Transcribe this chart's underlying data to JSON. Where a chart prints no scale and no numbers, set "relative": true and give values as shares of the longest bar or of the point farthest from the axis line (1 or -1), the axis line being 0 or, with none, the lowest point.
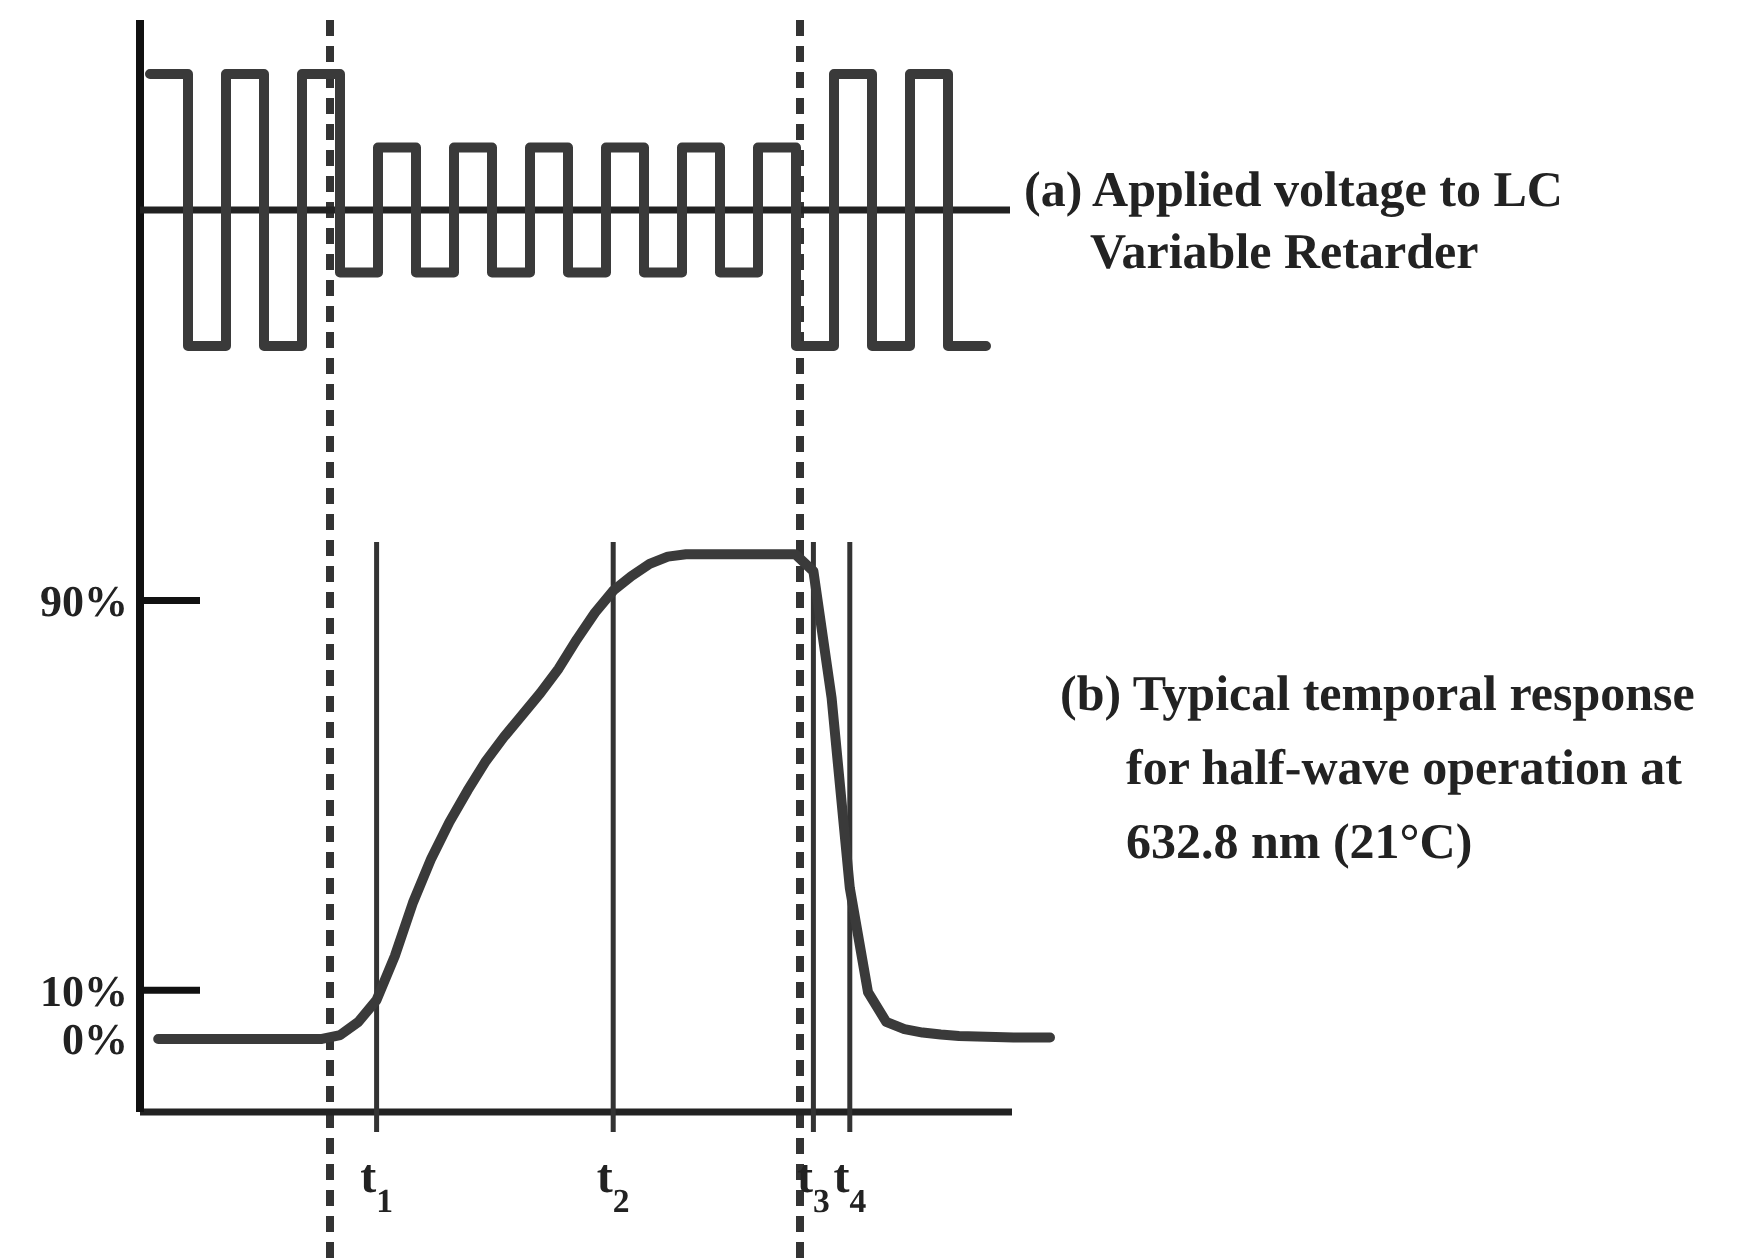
{
  "chart_data": [
    {
      "type": "step",
      "relative": true,
      "title": "(a) Applied voltage to LC Variable Retarder",
      "color": "#3a3a3a",
      "categories": [
        null,
        null,
        null,
        null,
        null,
        null,
        null,
        null,
        null,
        null,
        null,
        null,
        null,
        null,
        null,
        null,
        null,
        null,
        null,
        null,
        null,
        null,
        null
      ],
      "values": [
        1,
        -1,
        1,
        -1,
        1,
        -0.46,
        0.46,
        -0.46,
        0.46,
        -0.46,
        0.46,
        -0.46,
        0.46,
        -0.46,
        0.46,
        -0.46,
        0.46,
        -1,
        1,
        -1,
        1,
        -1,
        -1
      ]
    },
    {
      "type": "line",
      "title": "(b) Typical temporal response for half-wave operation at 632.8 nm (21°C)",
      "ylim": [
        -15,
        102
      ],
      "color": "#3a3a3a",
      "grid": "x",
      "yticks": [
        {
          "value": 0,
          "label": "0%"
        },
        {
          "value": 10,
          "label": "10%"
        },
        {
          "value": 90,
          "label": "90%"
        }
      ],
      "categories": [
        null,
        null,
        null,
        null,
        null,
        null,
        null,
        null,
        null,
        null,
        null,
        null,
        null,
        "t$_{1}$",
        null,
        null,
        null,
        null,
        null,
        null,
        null,
        null,
        null,
        null,
        null,
        null,
        "t$_{2}$",
        null,
        null,
        null,
        null,
        null,
        null,
        null,
        null,
        null,
        null,
        "t$_{3}$",
        null,
        "t$_{4}$",
        null,
        null,
        null,
        null,
        null,
        null,
        null,
        null,
        null,
        null,
        null
      ],
      "values": [
        null,
        0,
        0,
        0,
        0,
        0,
        0,
        0,
        0,
        0,
        0,
        0.8,
        3.5,
        8,
        17,
        28,
        37,
        44.5,
        51,
        57,
        62,
        66.5,
        71,
        76,
        82,
        87.5,
        92,
        95,
        97.5,
        99,
        99.5,
        99.5,
        99.5,
        99.5,
        99.5,
        99.5,
        99.5,
        96,
        70,
        31,
        9.6,
        3.5,
        2,
        1.3,
        0.9,
        0.6,
        0.5,
        0.4,
        0.3,
        0.3,
        0.3
      ]
    }
  ]
}
